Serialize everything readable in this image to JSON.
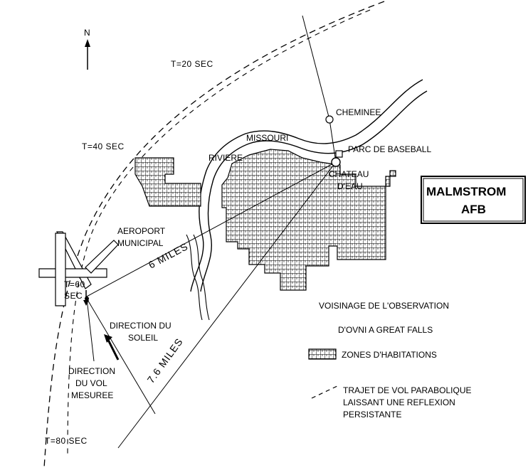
{
  "north_label": "N",
  "flight_times": {
    "t20": "T=20 SEC",
    "t40": "T=40 SEC",
    "t60_line1": "T=60",
    "t60_line2": "SEC",
    "t80": "T=80 SEC"
  },
  "places": {
    "missouri": "MISSOURI",
    "riviere": "RIVIERE",
    "cheminee": "CHEMINEE",
    "parc": "PARC DE BASEBALL",
    "chateau_line1": "CHATEAU",
    "chateau_line2": "D'EAU",
    "aeroport_line1": "AEROPORT",
    "aeroport_line2": "MUNICIPAL"
  },
  "distances": {
    "six_miles": "6 MILES",
    "seven_six_miles": "7.6 MILES"
  },
  "directions": {
    "soleil_line1": "DIRECTION DU",
    "soleil_line2": "SOLEIL",
    "vol_line1": "DIRECTION",
    "vol_line2": "DU VOL",
    "vol_line3": "MESUREE"
  },
  "base_box": {
    "line1": "MALMSTROM",
    "line2": "AFB"
  },
  "legend": {
    "title_line1": "VOISINAGE DE L'OBSERVATION",
    "title_line2": "D'OVNI A GREAT FALLS",
    "habitations": "ZONES D'HABITATIONS",
    "trajet_line1": "TRAJET DE VOL PARABOLIQUE",
    "trajet_line2": "LAISSANT UNE REFLEXION",
    "trajet_line3": "PERSISTANTE"
  }
}
